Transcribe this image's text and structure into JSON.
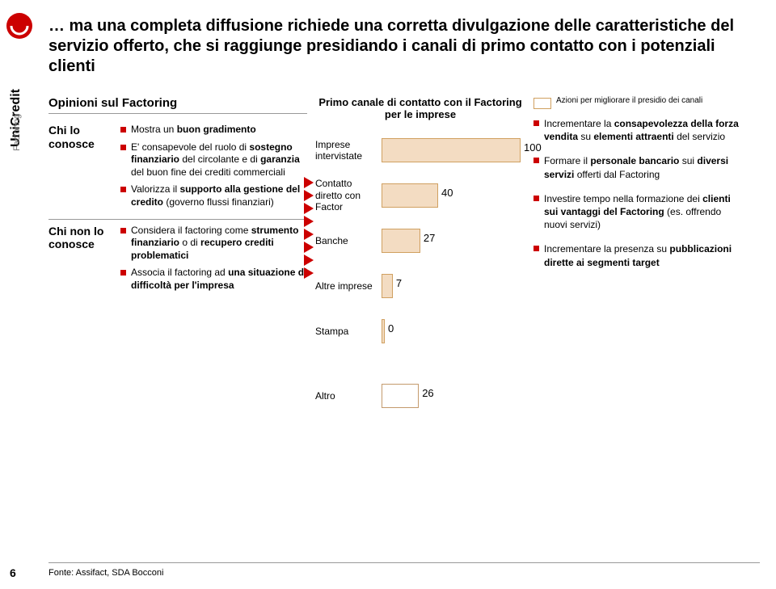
{
  "brand": {
    "main": "UniCredit",
    "sub": "Factoring"
  },
  "title": "… ma una completa diffusione richiede una corretta divulgazione delle caratteristiche del servizio offerto, che si raggiunge presidiando i canali di primo contatto con i potenziali clienti",
  "opinions": {
    "header": "Opinioni sul Factoring",
    "knows": {
      "label": "Chi lo conosce",
      "items": [
        {
          "pre": "Mostra un ",
          "bold1": "buon gradimento",
          "post": ""
        },
        {
          "pre": "E' consapevole del ruolo di ",
          "bold1": "sostegno finanziario",
          "mid": " del circolante e di ",
          "bold2": "garanzia",
          "post": " del buon fine dei crediti commerciali"
        },
        {
          "pre": "Valorizza il ",
          "bold1": "supporto alla gestione del credito",
          "post": " (governo flussi finanziari)"
        }
      ]
    },
    "not_knows": {
      "label": "Chi non lo conosce",
      "items": [
        {
          "pre": "Considera il factoring come ",
          "bold1": "strumento finanziario",
          "mid": " o di ",
          "bold2": "recupero crediti problematici",
          "post": ""
        },
        {
          "pre": "Associa il factoring ad ",
          "bold1": "una situazione di difficoltà per l'impresa",
          "post": ""
        }
      ]
    }
  },
  "chart": {
    "title": "Primo canale di contatto con il Factoring per le imprese",
    "scale_max": 100,
    "bar_color": "#f3dcc2",
    "bar_border": "#d0a060",
    "altro_fill": "#ffffff",
    "rows": [
      {
        "key": "imprese",
        "label": "Imprese intervistate",
        "value": 100
      },
      {
        "key": "contatto",
        "label": "Contatto diretto con Factor",
        "value": 40
      },
      {
        "key": "banche",
        "label": "Banche",
        "value": 27
      },
      {
        "key": "altre",
        "label": "Altre imprese",
        "value": 7
      },
      {
        "key": "stampa",
        "label": "Stampa",
        "value": 0
      },
      {
        "key": "altro",
        "label": "Altro",
        "value": 26
      }
    ]
  },
  "legend": {
    "text": "Azioni per migliorare il presidio dei canali"
  },
  "actions": [
    {
      "pre": "Incrementare la ",
      "bold1": "consapevolezza della forza vendita",
      "mid": " su ",
      "bold2": "elementi attraenti",
      "post": " del servizio"
    },
    {
      "pre": "Formare il ",
      "bold1": "personale bancario",
      "mid": " sui ",
      "bold2": "diversi servizi",
      "post": " offerti dal Factoring"
    },
    {
      "pre": "Investire tempo nella formazione dei ",
      "bold1": "clienti sui vantaggi del Factoring",
      "post": " (es. offrendo nuovi servizi)"
    },
    {
      "pre": "Incrementare la presenza su ",
      "bold1": "pubblicazioni dirette ai segmenti target",
      "post": ""
    }
  ],
  "source": "Fonte: Assifact, SDA Bocconi",
  "page": "6"
}
